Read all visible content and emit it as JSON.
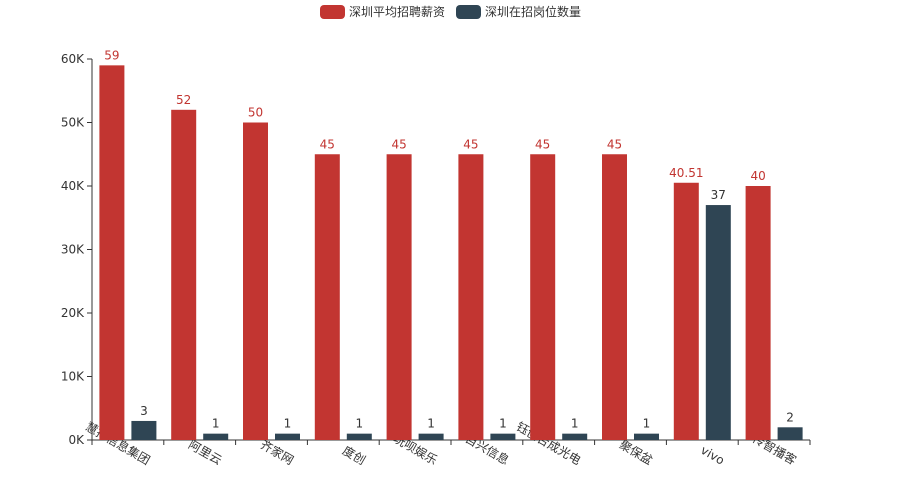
{
  "chart_data": {
    "type": "bar",
    "categories": [
      "慧择信息集团",
      "阿里云",
      "齐家网",
      "度创",
      "玩呗娱乐",
      "自兴信息",
      "钰创合成光电",
      "聚保盆",
      "vivo",
      "传智播客"
    ],
    "series": [
      {
        "name": "深圳平均招聘薪资",
        "color": "#c23531",
        "plot_values": [
          59000,
          52000,
          50000,
          45000,
          45000,
          45000,
          45000,
          45000,
          40510,
          40000
        ],
        "labels": [
          "59",
          "52",
          "50",
          "45",
          "45",
          "45",
          "45",
          "45",
          "40.51",
          "40"
        ]
      },
      {
        "name": "深圳在招岗位数量",
        "color": "#2f4554",
        "plot_values": [
          3000,
          1000,
          1000,
          1000,
          1000,
          1000,
          1000,
          1000,
          37000,
          2000
        ],
        "labels": [
          "3",
          "1",
          "1",
          "1",
          "1",
          "1",
          "1",
          "1",
          "37",
          "2"
        ]
      }
    ],
    "ylim": [
      0,
      60000
    ],
    "yticks": [
      0,
      10000,
      20000,
      30000,
      40000,
      50000,
      60000
    ],
    "ytick_labels": [
      "0K",
      "10K",
      "20K",
      "30K",
      "40K",
      "50K",
      "60K"
    ],
    "legend_position": "top-center",
    "grid": false
  }
}
